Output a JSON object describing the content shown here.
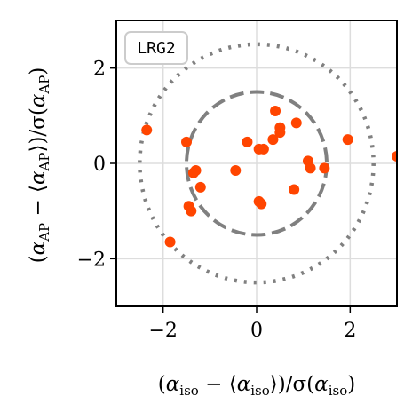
{
  "chart_data": {
    "type": "scatter",
    "badge": "LRG2",
    "xlim": [
      -3,
      3
    ],
    "ylim": [
      -3,
      3
    ],
    "xticks": [
      -2,
      0,
      2
    ],
    "yticks": [
      -2,
      0,
      2
    ],
    "xtick_labels": [
      "−2",
      "0",
      "2"
    ],
    "ytick_labels": [
      "−2",
      "0",
      "2"
    ],
    "xlabel": {
      "open": "(",
      "alpha": "α",
      "sub": "iso",
      "mid": " − ⟨",
      "close": "⟩)/σ(",
      "end": ")"
    },
    "ylabel": {
      "open": "(",
      "alpha": "α",
      "sub": "AP",
      "mid": " − ⟨",
      "close": "⟩)/σ(",
      "end": ")"
    },
    "grid": true,
    "point_color": "#ff4500",
    "circle_color": "#808080",
    "circles": [
      {
        "radius": 1.5,
        "style": "dashed"
      },
      {
        "radius": 2.5,
        "style": "dotted"
      }
    ],
    "x": [
      -2.35,
      -1.85,
      -1.45,
      -1.5,
      -1.4,
      -1.3,
      -1.35,
      -1.2,
      -0.45,
      -0.2,
      0.05,
      0.15,
      0.05,
      0.1,
      0.35,
      0.4,
      0.5,
      0.5,
      0.85,
      0.8,
      1.1,
      1.15,
      1.45,
      1.95,
      3.0
    ],
    "y": [
      0.7,
      -1.65,
      -0.9,
      0.45,
      -1.0,
      -0.15,
      -0.2,
      -0.5,
      -0.15,
      0.45,
      0.3,
      0.3,
      -0.8,
      -0.85,
      0.5,
      1.1,
      0.75,
      0.65,
      0.85,
      -0.55,
      0.05,
      -0.1,
      -0.1,
      0.5,
      0.15
    ]
  }
}
